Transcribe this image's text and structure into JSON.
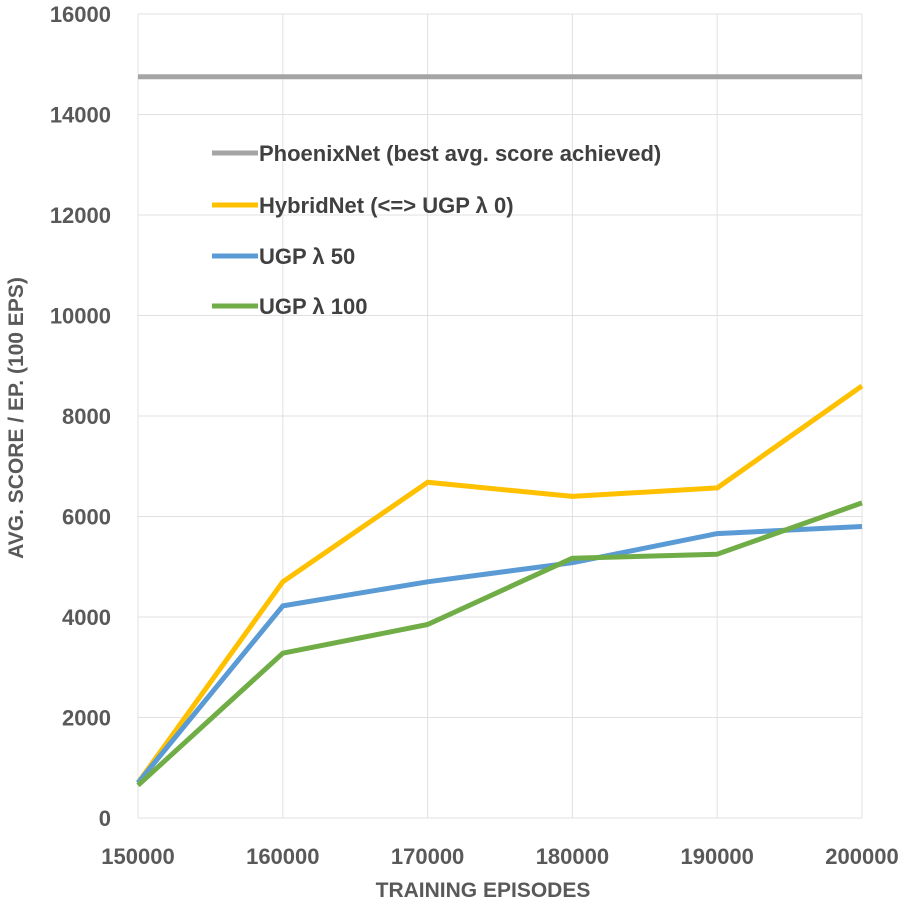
{
  "chart_data": {
    "type": "line",
    "title": "",
    "xlabel": "TRAINING EPISODES",
    "ylabel": "AVG. SCORE / EP. (100 EPS)",
    "x": [
      150000,
      160000,
      170000,
      180000,
      190000,
      200000
    ],
    "x_tick_labels": [
      "150000",
      "160000",
      "170000",
      "180000",
      "190000",
      "200000"
    ],
    "y_tick_values": [
      0,
      2000,
      4000,
      6000,
      8000,
      10000,
      12000,
      14000,
      16000
    ],
    "y_tick_labels": [
      "0",
      "2000",
      "4000",
      "6000",
      "8000",
      "10000",
      "12000",
      "14000",
      "16000"
    ],
    "xlim": [
      150000,
      200000
    ],
    "ylim": [
      0,
      16000
    ],
    "grid": true,
    "legend_position": "top-left",
    "series": [
      {
        "name": "PhoenixNet (best avg. score achieved)",
        "color": "#a5a5a5",
        "values": [
          14750,
          14750,
          14750,
          14750,
          14750,
          14750
        ]
      },
      {
        "name": "HybridNet (<=> UGP λ 0)",
        "color": "#ffc000",
        "values": [
          700,
          4700,
          6680,
          6400,
          6570,
          8600
        ]
      },
      {
        "name": "UGP λ 50",
        "color": "#5b9bd5",
        "values": [
          700,
          4220,
          4700,
          5080,
          5660,
          5800
        ]
      },
      {
        "name": "UGP λ 100",
        "color": "#70ad47",
        "values": [
          650,
          3280,
          3850,
          5170,
          5250,
          6270
        ]
      }
    ]
  }
}
